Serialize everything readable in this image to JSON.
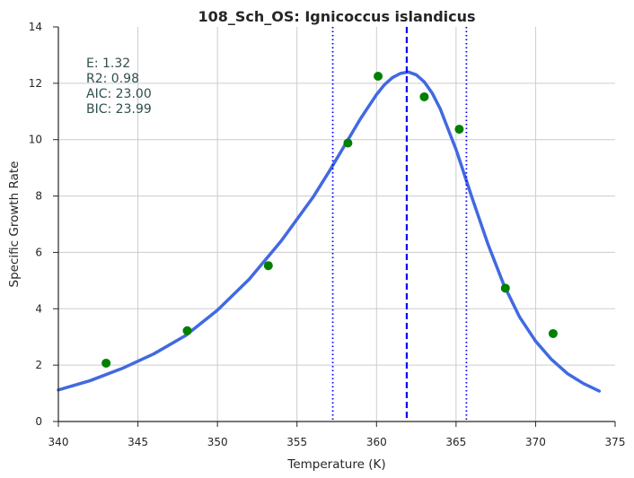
{
  "chart_data": {
    "type": "scatter",
    "title": "108_Sch_OS: Ignicoccus islandicus",
    "xlabel": "Temperature (K)",
    "ylabel": "Specific Growth Rate",
    "xlim": [
      340,
      375
    ],
    "ylim": [
      0,
      14
    ],
    "xticks": [
      "340",
      "345",
      "350",
      "355",
      "360",
      "365",
      "370",
      "375"
    ],
    "yticks": [
      "0",
      "2",
      "4",
      "6",
      "8",
      "10",
      "12",
      "14"
    ],
    "grid": true,
    "points": {
      "color": "#008000",
      "x": [
        343.0,
        348.1,
        353.2,
        358.2,
        360.1,
        363.0,
        365.2,
        368.1,
        371.1
      ],
      "y": [
        2.07,
        3.22,
        5.53,
        9.88,
        12.25,
        11.52,
        10.37,
        4.73,
        3.12
      ]
    },
    "fit_curve": {
      "color": "#4169e1",
      "x": [
        340.0,
        342.0,
        344.0,
        346.0,
        348.0,
        350.0,
        352.0,
        354.0,
        356.0,
        357.0,
        358.0,
        359.0,
        360.0,
        360.5,
        361.0,
        361.5,
        362.0,
        362.5,
        363.0,
        363.5,
        364.0,
        365.0,
        366.0,
        367.0,
        368.0,
        369.0,
        370.0,
        371.0,
        372.0,
        373.0,
        374.0
      ],
      "y": [
        1.12,
        1.45,
        1.88,
        2.4,
        3.05,
        3.95,
        5.05,
        6.4,
        7.95,
        8.85,
        9.8,
        10.75,
        11.6,
        11.95,
        12.2,
        12.35,
        12.4,
        12.3,
        12.05,
        11.65,
        11.1,
        9.65,
        7.95,
        6.3,
        4.85,
        3.7,
        2.85,
        2.2,
        1.7,
        1.35,
        1.08
      ]
    },
    "vlines": [
      {
        "x": 361.9,
        "style": "dashed",
        "color": "#0000ff"
      },
      {
        "x": 357.25,
        "style": "dotted",
        "color": "#0000ff"
      },
      {
        "x": 365.65,
        "style": "dotted",
        "color": "#0000ff"
      }
    ],
    "annotations": [
      "E:  1.32",
      "R2:  0.98",
      "AIC: 23.00",
      "BIC: 23.99"
    ]
  }
}
